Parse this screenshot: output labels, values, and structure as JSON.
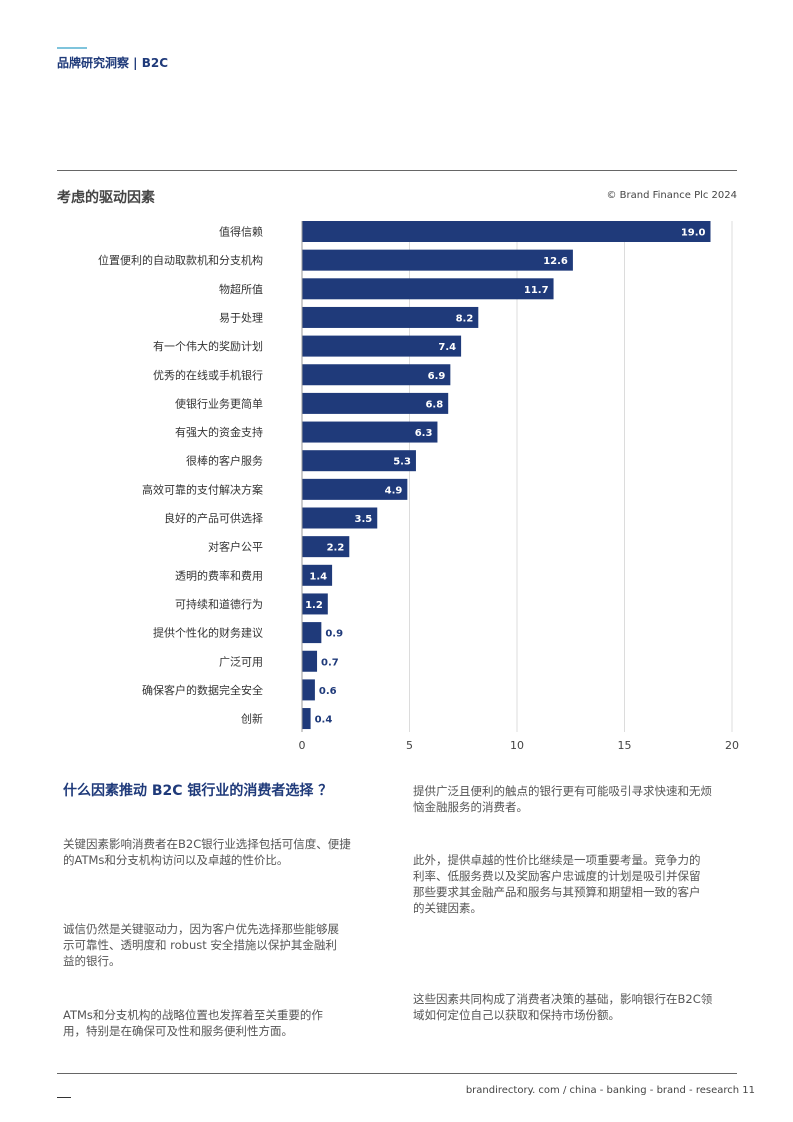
{
  "header": {
    "section": "品牌研究洞察 | B2C"
  },
  "chart_title": "考虑的驱动因素",
  "copyright": "© Brand Finance Plc 2024",
  "chart_data": {
    "type": "bar",
    "orientation": "horizontal",
    "categories": [
      "值得信赖",
      "位置便利的自动取款机和分支机构",
      "物超所值",
      "易于处理",
      "有一个伟大的奖励计划",
      "优秀的在线或手机银行",
      "使银行业务更简单",
      "有强大的资金支持",
      "很棒的客户服务",
      "高效可靠的支付解决方案",
      "良好的产品可供选择",
      "对客户公平",
      "透明的费率和费用",
      "可持续和道德行为",
      "提供个性化的财务建议",
      "广泛可用",
      "确保客户的数据完全安全",
      "创新"
    ],
    "values": [
      19.0,
      12.6,
      11.7,
      8.2,
      7.4,
      6.9,
      6.8,
      6.3,
      5.3,
      4.9,
      3.5,
      2.2,
      1.4,
      1.2,
      0.9,
      0.7,
      0.6,
      0.4
    ],
    "value_labels": [
      "19.0",
      "12.6",
      "11.7",
      "8.2",
      "7.4",
      "6.9",
      "6.8",
      "6.3",
      "5.3",
      "4.9",
      "3.5",
      "2.2",
      "1.4",
      "1.2",
      "0.9",
      "0.7",
      "0.6",
      "0.4"
    ],
    "xlim": [
      0,
      20
    ],
    "xticks": [
      "0",
      "5",
      "10",
      "15",
      "20"
    ],
    "grid": true,
    "bar_color": "#1f3a7a"
  },
  "article": {
    "heading": "什么因素推动 B2C 银行业的消费者选择 ？",
    "left_paragraphs": [
      "关键因素影响消费者在B2C银行业选择包括可信度、便捷的ATMs和分支机构访问以及卓越的性价比。",
      "诚信仍然是关键驱动力，因为客户优先选择那些能够展示可靠性、透明度和 robust 安全措施以保护其金融利益的银行。",
      "ATMs和分支机构的战略位置也发挥着至关重要的作用，特别是在确保可及性和服务便利性方面。"
    ],
    "right_paragraphs": [
      "提供广泛且便利的触点的银行更有可能吸引寻求快速和无烦恼金融服务的消费者。",
      "此外，提供卓越的性价比继续是一项重要考量。竞争力的利率、低服务费以及奖励客户忠诚度的计划是吸引并保留那些要求其金融产品和服务与其预算和期望相一致的客户的关键因素。",
      "这些因素共同构成了消费者决策的基础，影响银行在B2C领域如何定位自己以获取和保持市场份额。"
    ]
  },
  "footer": {
    "text": "brandirectory. com / china - banking - brand - research 11"
  }
}
